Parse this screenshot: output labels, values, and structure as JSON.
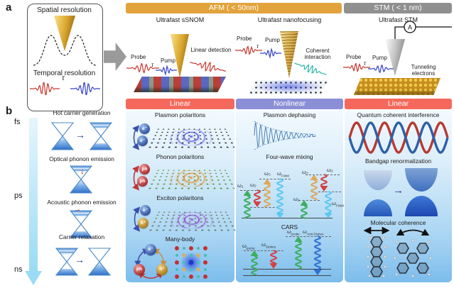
{
  "figure": {
    "panel_a_label": "a",
    "panel_b_label": "b"
  },
  "resolution_box": {
    "spatial_label": "Spatial resolution",
    "temporal_label": "Temporal resolution",
    "tau": "τ"
  },
  "headers": {
    "afm_label": "AFM ( < 50nm)",
    "stm_label": "STM ( < 1 nm)"
  },
  "columns": [
    {
      "title": "Ultrafast sSNOM",
      "mode_label": "Linear",
      "probe_label": "Probe",
      "pump_label": "Pump",
      "tau": "τ",
      "signal_label": "Linear detection",
      "items": [
        "Plasmon polaritons",
        "Phonon polaritons",
        "Exciton polaritons",
        "Many-body"
      ]
    },
    {
      "title": "Ultrafast nanofocusing",
      "mode_label": "Nonlinear",
      "probe_label": "Probe",
      "pump_label": "Pump",
      "tau": "τ",
      "signal_label": "Coherent interaction",
      "items": [
        "Plasmon dephasing",
        "Four-wave mixing",
        "CARS"
      ]
    },
    {
      "title": "Ultrafast STM",
      "mode_label": "Linear",
      "probe_label": "Probe",
      "pump_label": "Pump",
      "tau": "τ",
      "signal_label": "Tunneling electrons",
      "ammeter_label": "A",
      "items": [
        "Quantum coherent interference",
        "Bandgap renormalization",
        "Molecular coherence"
      ]
    }
  ],
  "timescale": {
    "fs": "fs",
    "ps": "ps",
    "ns": "ns",
    "processes": [
      "Hot carrier generation",
      "Optical phonon emission",
      "Acoustic phonon emission",
      "Carrier relaxation"
    ]
  },
  "particles": {
    "electron": "e⁻",
    "hole": "h⁺",
    "phonon": "ph"
  },
  "omega_labels": {
    "omega1": "ω₁",
    "omega2": "ω₂",
    "omega3": "ω₃",
    "omega": "ω",
    "fwm_sub": "FWM",
    "pump_sub": "pump",
    "stokes_sub": "Stokes",
    "probe_sub": "probe",
    "anti_stokes_sub": "Anti-Stokes"
  },
  "colors": {
    "afm_header": "#E2A33C",
    "stm_header": "#909090",
    "linear_bar": "#F4695C",
    "nonlinear_bar": "#8B8FD6",
    "probe_pulse": "#C8362E",
    "pump_pulse": "#3642C8",
    "signal_pulse": "#2BB5A8"
  }
}
